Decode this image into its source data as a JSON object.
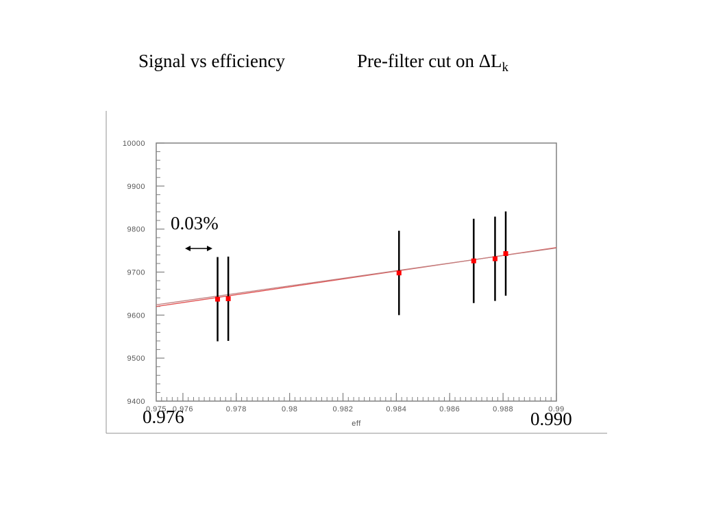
{
  "header": {
    "left_title": "Signal vs efficiency",
    "right_title_main": "Pre-filter cut on ΔL",
    "right_title_sub": "k"
  },
  "annotations": {
    "range_min": "0.976",
    "range_max": "0.990",
    "span_label": "0.03%"
  },
  "colors": {
    "marker": "#ff0000",
    "fit_line": "#e05050",
    "error_bar": "#000000",
    "frame": "#808080"
  },
  "chart_data": {
    "type": "scatter",
    "xlabel": "eff",
    "ylabel": "",
    "xlim": [
      0.975,
      0.99
    ],
    "ylim": [
      9400,
      10000
    ],
    "x_ticks": [
      "0.976",
      "0.978",
      "0.98",
      "0.982",
      "0.984",
      "0.986",
      "0.988",
      "0.99"
    ],
    "y_ticks": [
      "9400",
      "9500",
      "9600",
      "9700",
      "9800",
      "9900",
      "10000"
    ],
    "grid": false,
    "points": [
      {
        "x": 0.9773,
        "y": 9637,
        "yerr": 98
      },
      {
        "x": 0.9777,
        "y": 9638,
        "yerr": 98
      },
      {
        "x": 0.9841,
        "y": 9698,
        "yerr": 98
      },
      {
        "x": 0.9869,
        "y": 9726,
        "yerr": 98
      },
      {
        "x": 0.9877,
        "y": 9731,
        "yerr": 98
      },
      {
        "x": 0.9881,
        "y": 9743,
        "yerr": 98
      }
    ],
    "fit_lines": [
      {
        "x": [
          0.975,
          0.99
        ],
        "y": [
          9620,
          9757
        ]
      },
      {
        "x": [
          0.975,
          0.99
        ],
        "y": [
          9624,
          9756
        ]
      }
    ]
  }
}
